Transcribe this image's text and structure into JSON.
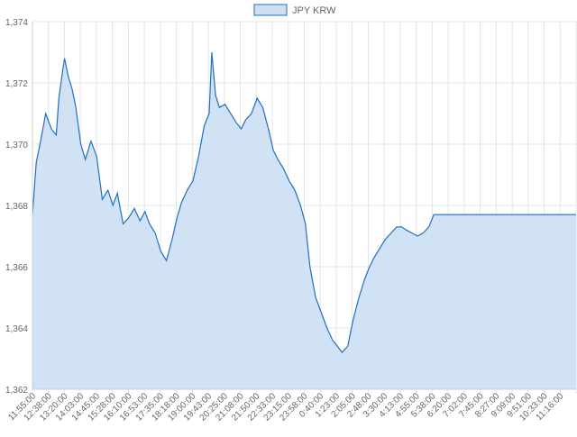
{
  "chart_data": {
    "type": "area",
    "legend": {
      "position": "top-center",
      "entries": [
        "JPY KRW"
      ]
    },
    "series": [
      {
        "name": "JPY KRW",
        "color": "#1f6fc4",
        "fill": "#cfe0f3",
        "points": [
          [
            "11:55:00",
            1367.7
          ],
          [
            "12:05:00",
            1369.4
          ],
          [
            "12:15:00",
            1370.0
          ],
          [
            "12:30:00",
            1371.0
          ],
          [
            "12:45:00",
            1370.5
          ],
          [
            "12:58:00",
            1370.3
          ],
          [
            "13:05:00",
            1371.5
          ],
          [
            "13:15:00",
            1372.4
          ],
          [
            "13:20:00",
            1372.8
          ],
          [
            "13:30:00",
            1372.2
          ],
          [
            "13:40:00",
            1371.8
          ],
          [
            "13:50:00",
            1371.2
          ],
          [
            "14:03:00",
            1370.0
          ],
          [
            "14:15:00",
            1369.5
          ],
          [
            "14:30:00",
            1370.1
          ],
          [
            "14:45:00",
            1369.6
          ],
          [
            "15:00:00",
            1368.2
          ],
          [
            "15:15:00",
            1368.5
          ],
          [
            "15:28:00",
            1368.0
          ],
          [
            "15:40:00",
            1368.4
          ],
          [
            "15:55:00",
            1367.4
          ],
          [
            "16:10:00",
            1367.6
          ],
          [
            "16:25:00",
            1367.9
          ],
          [
            "16:40:00",
            1367.5
          ],
          [
            "16:53:00",
            1367.8
          ],
          [
            "17:05:00",
            1367.4
          ],
          [
            "17:20:00",
            1367.1
          ],
          [
            "17:35:00",
            1366.5
          ],
          [
            "17:50:00",
            1366.2
          ],
          [
            "18:05:00",
            1366.9
          ],
          [
            "18:18:00",
            1367.6
          ],
          [
            "18:30:00",
            1368.1
          ],
          [
            "18:45:00",
            1368.5
          ],
          [
            "19:00:00",
            1368.8
          ],
          [
            "19:15:00",
            1369.6
          ],
          [
            "19:30:00",
            1370.6
          ],
          [
            "19:43:00",
            1371.0
          ],
          [
            "19:50:00",
            1373.0
          ],
          [
            "20:00:00",
            1371.6
          ],
          [
            "20:10:00",
            1371.2
          ],
          [
            "20:25:00",
            1371.3
          ],
          [
            "20:40:00",
            1371.0
          ],
          [
            "20:55:00",
            1370.7
          ],
          [
            "21:08:00",
            1370.5
          ],
          [
            "21:20:00",
            1370.8
          ],
          [
            "21:35:00",
            1371.0
          ],
          [
            "21:50:00",
            1371.5
          ],
          [
            "22:05:00",
            1371.2
          ],
          [
            "22:20:00",
            1370.5
          ],
          [
            "22:33:00",
            1369.8
          ],
          [
            "22:45:00",
            1369.5
          ],
          [
            "23:00:00",
            1369.2
          ],
          [
            "23:15:00",
            1368.8
          ],
          [
            "23:30:00",
            1368.5
          ],
          [
            "23:45:00",
            1368.0
          ],
          [
            "23:58:00",
            1367.4
          ],
          [
            "0:10:00",
            1366.0
          ],
          [
            "0:25:00",
            1365.0
          ],
          [
            "0:40:00",
            1364.5
          ],
          [
            "0:55:00",
            1364.0
          ],
          [
            "1:10:00",
            1363.6
          ],
          [
            "1:23:00",
            1363.4
          ],
          [
            "1:35:00",
            1363.2
          ],
          [
            "1:50:00",
            1363.4
          ],
          [
            "2:05:00",
            1364.3
          ],
          [
            "2:20:00",
            1365.0
          ],
          [
            "2:35:00",
            1365.6
          ],
          [
            "2:48:00",
            1366.0
          ],
          [
            "3:00:00",
            1366.3
          ],
          [
            "3:15:00",
            1366.6
          ],
          [
            "3:30:00",
            1366.9
          ],
          [
            "3:45:00",
            1367.1
          ],
          [
            "4:00:00",
            1367.3
          ],
          [
            "4:13:00",
            1367.3
          ],
          [
            "4:25:00",
            1367.2
          ],
          [
            "4:40:00",
            1367.1
          ],
          [
            "4:55:00",
            1367.0
          ],
          [
            "5:10:00",
            1367.1
          ],
          [
            "5:25:00",
            1367.3
          ],
          [
            "5:38:00",
            1367.7
          ],
          [
            "5:45:00",
            1367.7
          ],
          [
            "6:20:00",
            1367.7
          ],
          [
            "7:02:00",
            1367.7
          ],
          [
            "7:45:00",
            1367.7
          ],
          [
            "8:27:00",
            1367.7
          ],
          [
            "9:09:00",
            1367.7
          ],
          [
            "9:51:00",
            1367.7
          ],
          [
            "10:33:00",
            1367.7
          ],
          [
            "11:16:00",
            1367.7
          ],
          [
            "11:55:00",
            1367.7
          ]
        ]
      }
    ],
    "x_tick_labels": [
      "11:55:00",
      "12:38:00",
      "13:20:00",
      "14:03:00",
      "14:45:00",
      "15:28:00",
      "16:10:00",
      "16:53:00",
      "17:35:00",
      "18:18:00",
      "19:00:00",
      "19:43:00",
      "20:25:00",
      "21:08:00",
      "21:50:00",
      "22:33:00",
      "23:15:00",
      "23:58:00",
      "0:40:00",
      "1:23:00",
      "2:05:00",
      "2:48:00",
      "3:30:00",
      "4:13:00",
      "4:55:00",
      "5:38:00",
      "6:20:00",
      "7:02:00",
      "7:45:00",
      "8:27:00",
      "9:09:00",
      "9:51:00",
      "10:33:00",
      "11:16:00"
    ],
    "y_tick_labels": [
      "1,362",
      "1,364",
      "1,366",
      "1,368",
      "1,370",
      "1,372",
      "1,374"
    ],
    "y_ticks": [
      1362,
      1364,
      1366,
      1368,
      1370,
      1372,
      1374
    ],
    "ylim": [
      1362,
      1374
    ],
    "grid": true
  }
}
